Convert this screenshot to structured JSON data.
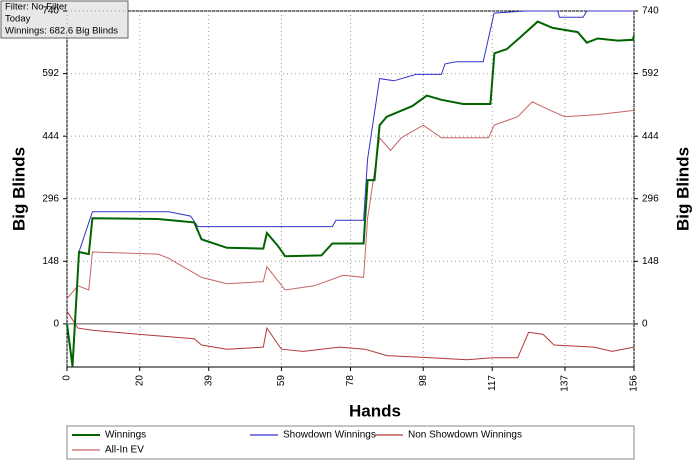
{
  "chart_data": {
    "type": "line",
    "info_box": [
      "Filter: No Filter",
      "Today",
      "Winnings: 682.6 Big Blinds"
    ],
    "xlabel": "Hands",
    "ylabel": "Big Blinds",
    "y2label": "Big Blinds",
    "xlim": [
      0,
      156
    ],
    "xticks": [
      0,
      20,
      39,
      59,
      78,
      98,
      117,
      137,
      156
    ],
    "ylim": [
      -102,
      740
    ],
    "yticks": [
      0,
      148,
      296,
      444,
      592,
      740
    ],
    "y2lim": [
      -102,
      740
    ],
    "y2ticks": [
      0,
      148,
      296,
      444,
      592,
      740
    ],
    "grid": true,
    "legend": "bottom",
    "series": [
      {
        "name": "Winnings",
        "color": "#006400",
        "x": [
          0,
          1.5,
          3.3,
          6,
          7,
          25,
          35,
          37,
          44,
          54,
          55,
          58,
          60,
          70,
          73,
          81.6,
          82.7,
          84.6,
          86,
          88,
          95,
          99,
          103,
          109,
          116.5,
          117.6,
          121,
          125,
          129.5,
          133.6,
          140.5,
          143,
          146,
          151.6,
          155.7,
          156
        ],
        "values": [
          0,
          -100,
          170,
          165,
          250,
          248,
          240,
          200,
          180,
          178,
          215,
          185,
          160,
          162,
          190,
          190,
          340,
          340,
          470,
          490,
          515,
          540,
          530,
          520,
          520,
          640,
          650,
          680,
          715,
          700,
          690,
          665,
          675,
          670,
          672,
          682.6
        ]
      },
      {
        "name": "Showdown Winnings",
        "color": "#3333cc",
        "x": [
          0,
          1.5,
          3.3,
          7,
          28,
          34,
          36,
          73,
          74,
          81.6,
          82.7,
          86,
          90,
          96,
          103,
          104,
          107,
          114.5,
          117.5,
          126,
          135,
          135.5,
          142,
          143,
          156
        ],
        "values": [
          0,
          -100,
          170,
          265,
          265,
          255,
          230,
          230,
          245,
          245,
          390,
          580,
          575,
          590,
          590,
          615,
          620,
          620,
          735,
          740,
          740,
          725,
          725,
          740,
          740
        ]
      },
      {
        "name": "Non Showdown Winnings",
        "color": "#b23a3a",
        "x": [
          0,
          3,
          7,
          20,
          35,
          37,
          44,
          54,
          55,
          59,
          65,
          75,
          82,
          88,
          100,
          110,
          117,
          124,
          127,
          131,
          134,
          145,
          150,
          156
        ],
        "values": [
          30,
          -10,
          -15,
          -25,
          -35,
          -50,
          -60,
          -55,
          -10,
          -60,
          -65,
          -55,
          -60,
          -75,
          -80,
          -85,
          -80,
          -80,
          -20,
          -25,
          -50,
          -55,
          -65,
          -55
        ]
      },
      {
        "name": "All-In EV",
        "color": "#c86464",
        "x": [
          0,
          3,
          6,
          7,
          25,
          28,
          37,
          44,
          54,
          55,
          60,
          68,
          76,
          81.6,
          82.7,
          86,
          89,
          92,
          98,
          103,
          116,
          117.5,
          124,
          128,
          133,
          137,
          146,
          156
        ],
        "values": [
          60,
          90,
          80,
          170,
          165,
          155,
          110,
          95,
          100,
          135,
          80,
          90,
          115,
          110,
          250,
          440,
          410,
          440,
          470,
          440,
          440,
          470,
          490,
          525,
          505,
          490,
          495,
          505
        ]
      }
    ]
  }
}
